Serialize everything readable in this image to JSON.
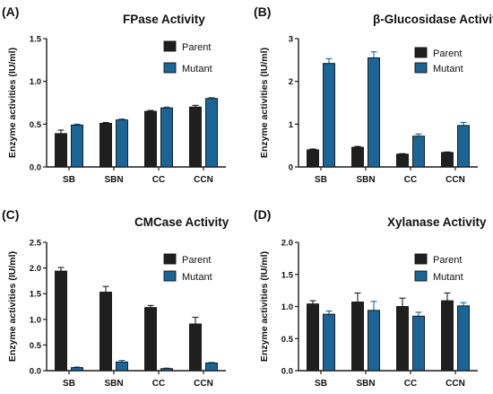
{
  "colors": {
    "parent": "#1f1f1f",
    "mutant": "#1a6496",
    "axis": "#1a1a1a"
  },
  "chart_data": [
    {
      "panel": "(A)",
      "type": "bar",
      "title": "FPase Activity",
      "ylabel": "Enzyme activities (IU/ml)",
      "xlabel": "",
      "categories": [
        "SB",
        "SBN",
        "CC",
        "CCN"
      ],
      "ylim": [
        0,
        1.5
      ],
      "yticks": [
        "0.0",
        "0.5",
        "1.0",
        "1.5"
      ],
      "legend": "top-right",
      "series": [
        {
          "name": "Parent",
          "values": [
            0.39,
            0.51,
            0.65,
            0.7
          ],
          "errors": [
            0.04,
            0.01,
            0.01,
            0.02
          ]
        },
        {
          "name": "Mutant",
          "values": [
            0.49,
            0.55,
            0.69,
            0.8
          ],
          "errors": [
            0.01,
            0.01,
            0.01,
            0.01
          ]
        }
      ]
    },
    {
      "panel": "(B)",
      "type": "bar",
      "title": "β-Glucosidase Activity",
      "ylabel": "Enzyme activities (IU/ml)",
      "xlabel": "",
      "categories": [
        "SB",
        "SBN",
        "CC",
        "CCN"
      ],
      "ylim": [
        0,
        3
      ],
      "yticks": [
        "0",
        "1",
        "2",
        "3"
      ],
      "legend": "top-right",
      "series": [
        {
          "name": "Parent",
          "values": [
            0.4,
            0.46,
            0.3,
            0.34
          ],
          "errors": [
            0.02,
            0.02,
            0.01,
            0.01
          ]
        },
        {
          "name": "Mutant",
          "values": [
            2.42,
            2.55,
            0.72,
            0.97
          ],
          "errors": [
            0.11,
            0.14,
            0.05,
            0.07
          ]
        }
      ]
    },
    {
      "panel": "(C)",
      "type": "bar",
      "title": "CMCase  Activity",
      "ylabel": "Enzyme activities (IU/ml)",
      "xlabel": "",
      "categories": [
        "SB",
        "SBN",
        "CC",
        "CCN"
      ],
      "ylim": [
        0,
        2.5
      ],
      "yticks": [
        "0.0",
        "0.5",
        "1.0",
        "1.5",
        "2.0",
        "2.5"
      ],
      "legend": "top-right",
      "series": [
        {
          "name": "Parent",
          "values": [
            1.94,
            1.53,
            1.23,
            0.91
          ],
          "errors": [
            0.07,
            0.11,
            0.04,
            0.13
          ]
        },
        {
          "name": "Mutant",
          "values": [
            0.06,
            0.17,
            0.04,
            0.15
          ],
          "errors": [
            0.01,
            0.03,
            0.01,
            0.01
          ]
        }
      ]
    },
    {
      "panel": "(D)",
      "type": "bar",
      "title": "Xylanase Activity",
      "ylabel": "Enzyme activities (IU/ml)",
      "xlabel": "",
      "categories": [
        "SB",
        "SBN",
        "CC",
        "CCN"
      ],
      "ylim": [
        0,
        2.0
      ],
      "yticks": [
        "0.0",
        "0.5",
        "1.0",
        "1.5",
        "2.0"
      ],
      "legend": "top-right",
      "series": [
        {
          "name": "Parent",
          "values": [
            1.04,
            1.07,
            1.0,
            1.09
          ],
          "errors": [
            0.05,
            0.14,
            0.13,
            0.12
          ]
        },
        {
          "name": "Mutant",
          "values": [
            0.88,
            0.94,
            0.85,
            1.01
          ],
          "errors": [
            0.05,
            0.14,
            0.06,
            0.05
          ]
        }
      ]
    }
  ]
}
